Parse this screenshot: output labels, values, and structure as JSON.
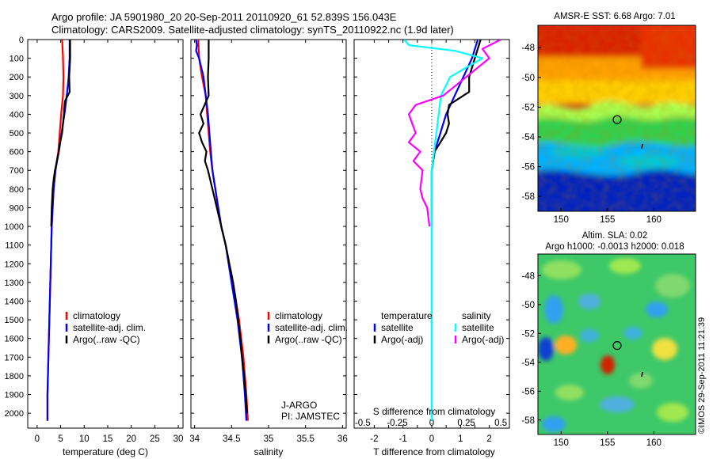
{
  "header": {
    "line1": "Argo profile: JA 5901980_20 20-Sep-2011 20110920_61 52.839S 156.043E",
    "line2": "Climatology: CARS2009. Satellite-adjusted climatology: synTS_20110922.nc (1.9d later)"
  },
  "footer_stamp": "©IMOS 29-Sep-2011 11:21:39",
  "chart_data": [
    {
      "type": "line",
      "xlabel": "temperature (deg C)",
      "xlim": [
        -2,
        31
      ],
      "x_ticks": [
        0,
        5,
        10,
        15,
        20,
        25,
        30
      ],
      "ylim": [
        0,
        2080
      ],
      "y_ticks": [
        0,
        100,
        200,
        300,
        400,
        500,
        600,
        700,
        800,
        900,
        1000,
        1100,
        1200,
        1300,
        1400,
        1500,
        1600,
        1700,
        1800,
        1900,
        2000
      ],
      "y_reversed": true,
      "legend": [
        "climatology",
        "satellite-adj. clim.",
        "Argo(..raw -QC)"
      ],
      "legend_position": "lower-right",
      "series": [
        {
          "name": "climatology",
          "color": "#ff0000",
          "points": [
            [
              5.3,
              0
            ],
            [
              5.5,
              100
            ],
            [
              5.6,
              200
            ],
            [
              5.5,
              300
            ],
            [
              5.1,
              400
            ],
            [
              4.8,
              500
            ],
            [
              4.5,
              600
            ],
            [
              3.9,
              700
            ],
            [
              3.5,
              800
            ],
            [
              3.3,
              900
            ],
            [
              3.1,
              1000
            ],
            [
              3.0,
              1100
            ],
            [
              2.9,
              1200
            ],
            [
              2.8,
              1300
            ],
            [
              2.7,
              1400
            ],
            [
              2.6,
              1500
            ],
            [
              2.5,
              1600
            ],
            [
              2.4,
              1700
            ],
            [
              2.3,
              1800
            ],
            [
              2.2,
              1900
            ],
            [
              2.2,
              2040
            ]
          ]
        },
        {
          "name": "satellite-adj. clim.",
          "color": "#0000ff",
          "points": [
            [
              6.9,
              0
            ],
            [
              6.9,
              100
            ],
            [
              6.7,
              200
            ],
            [
              6.3,
              300
            ],
            [
              5.8,
              400
            ],
            [
              5.2,
              500
            ],
            [
              4.6,
              600
            ],
            [
              3.9,
              700
            ],
            [
              3.5,
              800
            ],
            [
              3.3,
              900
            ],
            [
              3.1,
              1000
            ],
            [
              3.0,
              1100
            ],
            [
              2.9,
              1200
            ],
            [
              2.8,
              1300
            ],
            [
              2.7,
              1400
            ],
            [
              2.6,
              1500
            ],
            [
              2.5,
              1600
            ],
            [
              2.4,
              1700
            ],
            [
              2.3,
              1800
            ],
            [
              2.2,
              1900
            ],
            [
              2.2,
              2040
            ]
          ]
        },
        {
          "name": "Argo(..raw -QC)",
          "color": "#000000",
          "points": [
            [
              7.0,
              0
            ],
            [
              7.0,
              100
            ],
            [
              6.8,
              200
            ],
            [
              6.9,
              280
            ],
            [
              5.9,
              330
            ],
            [
              5.7,
              400
            ],
            [
              5.5,
              450
            ],
            [
              5.3,
              500
            ],
            [
              4.9,
              550
            ],
            [
              4.6,
              600
            ],
            [
              4.2,
              650
            ],
            [
              3.8,
              700
            ],
            [
              3.5,
              750
            ],
            [
              3.3,
              800
            ],
            [
              3.2,
              850
            ],
            [
              3.1,
              900
            ],
            [
              3.0,
              1000
            ]
          ]
        }
      ]
    },
    {
      "type": "line",
      "xlabel": "salinity",
      "xlim": [
        33.95,
        36.05
      ],
      "x_ticks": [
        34,
        34.5,
        35,
        35.5,
        36
      ],
      "ylim": [
        0,
        2080
      ],
      "y_reversed": true,
      "legend": [
        "climatology",
        "satellite-adj. clim.",
        "Argo(..raw -QC)"
      ],
      "legend_position": "lower-right",
      "annotations": [
        "J-ARGO",
        "PI: JAMSTEC"
      ],
      "series": [
        {
          "name": "climatology",
          "color": "#ff0000",
          "points": [
            [
              34.05,
              0
            ],
            [
              34.06,
              100
            ],
            [
              34.1,
              200
            ],
            [
              34.15,
              300
            ],
            [
              34.17,
              400
            ],
            [
              34.19,
              500
            ],
            [
              34.21,
              600
            ],
            [
              34.24,
              700
            ],
            [
              34.28,
              800
            ],
            [
              34.32,
              900
            ],
            [
              34.36,
              1000
            ],
            [
              34.42,
              1100
            ],
            [
              34.47,
              1200
            ],
            [
              34.52,
              1300
            ],
            [
              34.56,
              1400
            ],
            [
              34.6,
              1500
            ],
            [
              34.63,
              1600
            ],
            [
              34.66,
              1700
            ],
            [
              34.68,
              1800
            ],
            [
              34.7,
              1900
            ],
            [
              34.72,
              2040
            ]
          ]
        },
        {
          "name": "satellite-adj. clim.",
          "color": "#0000ff",
          "points": [
            [
              34.02,
              0
            ],
            [
              34.03,
              30
            ],
            [
              34.02,
              60
            ],
            [
              34.06,
              100
            ],
            [
              34.12,
              200
            ],
            [
              34.15,
              300
            ],
            [
              34.18,
              400
            ],
            [
              34.2,
              500
            ],
            [
              34.22,
              600
            ],
            [
              34.24,
              700
            ],
            [
              34.28,
              800
            ],
            [
              34.32,
              900
            ],
            [
              34.36,
              1000
            ],
            [
              34.42,
              1100
            ],
            [
              34.46,
              1200
            ],
            [
              34.5,
              1300
            ],
            [
              34.54,
              1400
            ],
            [
              34.58,
              1500
            ],
            [
              34.61,
              1600
            ],
            [
              34.64,
              1700
            ],
            [
              34.66,
              1800
            ],
            [
              34.68,
              1900
            ],
            [
              34.7,
              2040
            ]
          ]
        },
        {
          "name": "Argo(..raw -QC)",
          "color": "#000000",
          "points": [
            [
              34.19,
              0
            ],
            [
              34.19,
              100
            ],
            [
              34.18,
              200
            ],
            [
              34.19,
              300
            ],
            [
              34.08,
              400
            ],
            [
              34.12,
              450
            ],
            [
              34.06,
              500
            ],
            [
              34.1,
              550
            ],
            [
              34.16,
              600
            ],
            [
              34.14,
              650
            ],
            [
              34.18,
              700
            ],
            [
              34.24,
              800
            ],
            [
              34.3,
              900
            ],
            [
              34.36,
              1000
            ],
            [
              34.42,
              1100
            ],
            [
              34.47,
              1200
            ],
            [
              34.52,
              1300
            ],
            [
              34.56,
              1400
            ],
            [
              34.59,
              1500
            ],
            [
              34.62,
              1600
            ],
            [
              34.64,
              1700
            ],
            [
              34.67,
              1800
            ],
            [
              34.69,
              1900
            ],
            [
              34.71,
              2000
            ]
          ]
        }
      ]
    },
    {
      "type": "line",
      "xlabel_bottom": "T difference from climatology",
      "xlabel_top": "S difference from climatology",
      "xlim": [
        -2.7,
        2.7
      ],
      "x_ticks": [
        -2,
        -1.5,
        -1,
        -0.5,
        0,
        0.5,
        1,
        1.5,
        2
      ],
      "x_tick_labels": [
        "-2",
        "",
        "-1",
        "",
        "0",
        "",
        "1",
        "",
        "2"
      ],
      "top_ticks": [
        -0.5,
        -0.25,
        0,
        0.25,
        0.5
      ],
      "top_tick_labels": [
        "-0.5",
        "-0.25",
        "0",
        "0.25",
        "0.5"
      ],
      "ylim": [
        0,
        2080
      ],
      "y_reversed": true,
      "legend_temperature_title": "temperature",
      "legend_salinity_title": "salinity",
      "legend_temperature": [
        "satellite",
        "Argo(-adj)"
      ],
      "legend_salinity": [
        "satellite",
        "Argo(-adj)"
      ],
      "legend_position": "lower",
      "series": [
        {
          "name": "satellite",
          "group": "temperature",
          "color": "#0000ff",
          "points": [
            [
              1.6,
              0
            ],
            [
              1.4,
              100
            ],
            [
              1.1,
              200
            ],
            [
              0.8,
              300
            ],
            [
              0.5,
              400
            ],
            [
              0.3,
              500
            ],
            [
              0.1,
              600
            ],
            [
              0,
              700
            ],
            [
              0,
              800
            ],
            [
              0,
              900
            ],
            [
              0,
              1000
            ],
            [
              0,
              1200
            ],
            [
              0,
              1500
            ],
            [
              0,
              2040
            ]
          ]
        },
        {
          "name": "Argo(-adj)",
          "group": "temperature",
          "color": "#000000",
          "points": [
            [
              1.7,
              0
            ],
            [
              1.5,
              100
            ],
            [
              1.3,
              200
            ],
            [
              1.3,
              280
            ],
            [
              0.6,
              350
            ],
            [
              0.55,
              400
            ],
            [
              0.6,
              450
            ],
            [
              0.5,
              500
            ],
            [
              0.3,
              550
            ],
            [
              0.1,
              600
            ],
            [
              0,
              700
            ],
            [
              0,
              800
            ],
            [
              0,
              1000
            ]
          ]
        },
        {
          "name": "satellite",
          "group": "salinity",
          "color": "#00ffff",
          "points": [
            [
              -0.12,
              0
            ],
            [
              -0.1,
              30
            ],
            [
              0.1,
              60
            ],
            [
              0.22,
              100
            ],
            [
              0.08,
              200
            ],
            [
              0.04,
              300
            ],
            [
              0.03,
              400
            ],
            [
              0.02,
              500
            ],
            [
              0.01,
              600
            ],
            [
              0,
              700
            ],
            [
              0,
              900
            ],
            [
              0,
              1200
            ],
            [
              0,
              2040
            ]
          ]
        },
        {
          "name": "Argo(-adj)",
          "group": "salinity",
          "color": "#ff00ff",
          "points": [
            [
              0.3,
              0
            ],
            [
              0.22,
              50
            ],
            [
              0.25,
              100
            ],
            [
              0.15,
              200
            ],
            [
              0.05,
              300
            ],
            [
              -0.07,
              350
            ],
            [
              -0.1,
              400
            ],
            [
              -0.07,
              500
            ],
            [
              -0.1,
              550
            ],
            [
              -0.05,
              600
            ],
            [
              -0.08,
              650
            ],
            [
              -0.04,
              700
            ],
            [
              -0.05,
              800
            ],
            [
              -0.04,
              850
            ],
            [
              -0.02,
              900
            ],
            [
              -0.01,
              1000
            ]
          ]
        }
      ]
    },
    {
      "type": "heatmap",
      "title": "AMSR-E SST: 6.68 Argo: 7.01",
      "xlim": [
        147.5,
        164.5
      ],
      "x_ticks": [
        150,
        155,
        160
      ],
      "ylim": [
        -59,
        -46.5
      ],
      "y_ticks": [
        -48,
        -50,
        -52,
        -54,
        -56,
        -58
      ],
      "marker": {
        "lon": 156.043,
        "lat": -52.839
      },
      "colormap": "jet"
    },
    {
      "type": "heatmap",
      "title_line1": "Altim. SLA: 0.02",
      "title_line2": "Argo h1000: -0.0013 h2000: 0.018",
      "xlim": [
        147.5,
        164.5
      ],
      "x_ticks": [
        150,
        155,
        160
      ],
      "ylim": [
        -59,
        -46.5
      ],
      "y_ticks": [
        -48,
        -50,
        -52,
        -54,
        -56,
        -58
      ],
      "marker": {
        "lon": 156.043,
        "lat": -52.839
      },
      "colormap": "jet"
    }
  ]
}
